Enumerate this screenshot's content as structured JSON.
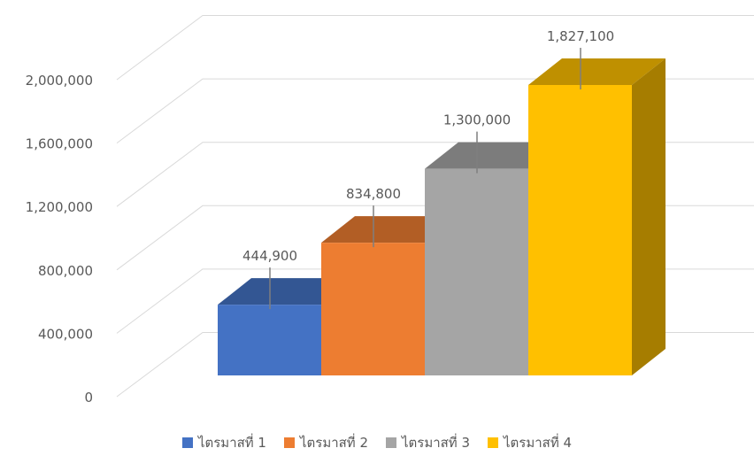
{
  "chart_data": {
    "type": "bar",
    "style": "3d-clustered-column",
    "categories": [
      "ไตรมาสที่ 1",
      "ไตรมาสที่ 2",
      "ไตรมาสที่ 3",
      "ไตรมาสที่ 4"
    ],
    "values": [
      444900,
      834800,
      1300000,
      1827100
    ],
    "data_labels": [
      "444,900",
      "834,800",
      "1,300,000",
      "1,827,100"
    ],
    "colors": [
      "#4472C4",
      "#ED7D31",
      "#A5A5A5",
      "#FFC000"
    ],
    "y_ticks": [
      "0",
      "400,000",
      "800,000",
      "1,200,000",
      "1,600,000",
      "2,000,000"
    ],
    "y_tick_values": [
      0,
      400000,
      800000,
      1200000,
      1600000,
      2000000
    ],
    "ylim": [
      0,
      2000000
    ],
    "title": "",
    "xlabel": "",
    "ylabel": "",
    "grid": true,
    "legend_position": "bottom"
  }
}
